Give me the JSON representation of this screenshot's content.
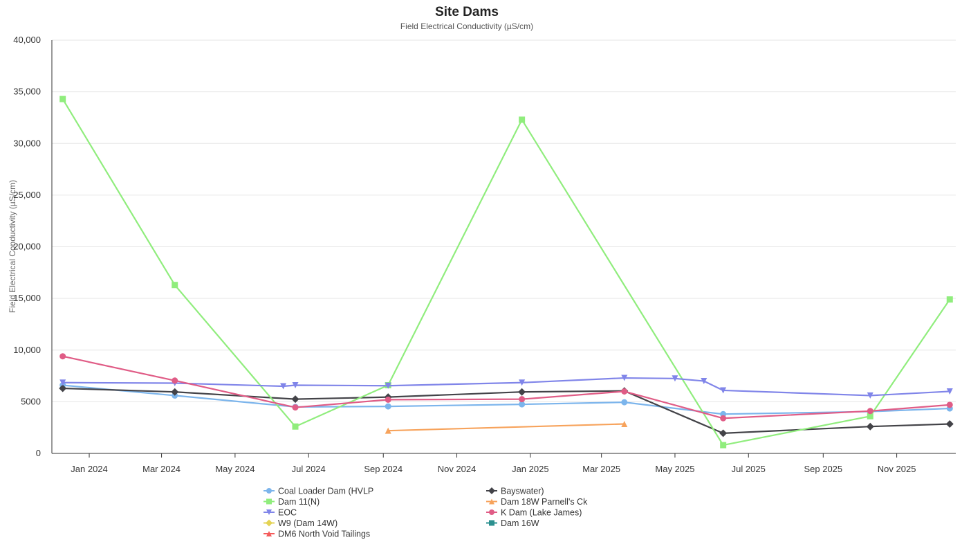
{
  "chart_data": {
    "type": "line",
    "title": "Site Dams",
    "subtitle": "Field Electrical Conductivity (µS/cm)",
    "ylabel": "Field Electrical Conductivity (µS/cm)",
    "xlabel": "",
    "ylim": [
      0,
      40000
    ],
    "xlim": [
      "2023-12-01",
      "2025-12-20"
    ],
    "y_ticks": [
      0,
      5000,
      10000,
      15000,
      20000,
      25000,
      30000,
      35000,
      40000
    ],
    "y_tick_labels": [
      "0",
      "5000",
      "10,000",
      "15,000",
      "20,000",
      "25,000",
      "30,000",
      "35,000",
      "40,000"
    ],
    "x_ticks": [
      "2024-01-01",
      "2024-03-01",
      "2024-05-01",
      "2024-07-01",
      "2024-09-01",
      "2024-11-01",
      "2025-01-01",
      "2025-03-01",
      "2025-05-01",
      "2025-07-01",
      "2025-09-01",
      "2025-11-01"
    ],
    "x_tick_labels": [
      "Jan 2024",
      "Mar 2024",
      "May 2024",
      "Jul 2024",
      "Sep 2024",
      "Nov 2024",
      "Jan 2025",
      "Mar 2025",
      "May 2025",
      "Jul 2025",
      "Sep 2025",
      "Nov 2025"
    ],
    "grid": true,
    "legend_position": "bottom",
    "series": [
      {
        "name": "Coal Loader Dam (HVLP",
        "color": "#7cb5ec",
        "marker": "circle",
        "points": [
          [
            "2023-12-10",
            6600
          ],
          [
            "2024-03-12",
            5600
          ],
          [
            "2024-06-20",
            4500
          ],
          [
            "2024-09-05",
            4550
          ],
          [
            "2024-12-25",
            4750
          ],
          [
            "2025-03-20",
            4950
          ],
          [
            "2025-06-10",
            3800
          ],
          [
            "2025-10-10",
            4050
          ],
          [
            "2025-12-15",
            4350
          ]
        ]
      },
      {
        "name": "Bayswater)",
        "color": "#434348",
        "marker": "diamond",
        "points": [
          [
            "2023-12-10",
            6300
          ],
          [
            "2024-03-12",
            5950
          ],
          [
            "2024-06-20",
            5250
          ],
          [
            "2024-09-05",
            5450
          ],
          [
            "2024-12-25",
            5950
          ],
          [
            "2025-03-20",
            6050
          ],
          [
            "2025-06-10",
            1950
          ],
          [
            "2025-10-10",
            2600
          ],
          [
            "2025-12-15",
            2850
          ]
        ]
      },
      {
        "name": "Dam 11(N)",
        "color": "#90ed7d",
        "marker": "square",
        "points": [
          [
            "2023-12-10",
            34300
          ],
          [
            "2024-03-12",
            16300
          ],
          [
            "2024-06-20",
            2600
          ],
          [
            "2024-09-05",
            6600
          ],
          [
            "2024-12-25",
            32300
          ],
          [
            "2025-06-10",
            800
          ],
          [
            "2025-10-10",
            3600
          ],
          [
            "2025-12-15",
            14900
          ]
        ]
      },
      {
        "name": "Dam 18W Parnell's Ck",
        "color": "#f7a35c",
        "marker": "triangle",
        "points": [
          [
            "2024-09-05",
            2200
          ],
          [
            "2025-03-20",
            2850
          ]
        ]
      },
      {
        "name": "EOC",
        "color": "#8085e9",
        "marker": "triangle-down",
        "points": [
          [
            "2023-12-10",
            6850
          ],
          [
            "2024-03-12",
            6800
          ],
          [
            "2024-06-10",
            6500
          ],
          [
            "2024-06-20",
            6600
          ],
          [
            "2024-09-05",
            6550
          ],
          [
            "2024-12-25",
            6850
          ],
          [
            "2025-03-20",
            7300
          ],
          [
            "2025-05-01",
            7250
          ],
          [
            "2025-05-25",
            7000
          ],
          [
            "2025-06-10",
            6100
          ],
          [
            "2025-10-10",
            5600
          ],
          [
            "2025-12-15",
            6000
          ]
        ]
      },
      {
        "name": "K Dam (Lake James)",
        "color": "#e05c86",
        "marker": "circle",
        "points": [
          [
            "2023-12-10",
            9400
          ],
          [
            "2024-03-12",
            7050
          ],
          [
            "2024-06-20",
            4450
          ],
          [
            "2024-09-05",
            5200
          ],
          [
            "2024-12-25",
            5250
          ],
          [
            "2025-03-20",
            6000
          ],
          [
            "2025-06-10",
            3400
          ],
          [
            "2025-10-10",
            4100
          ],
          [
            "2025-12-15",
            4700
          ]
        ]
      },
      {
        "name": "W9 (Dam 14W)",
        "color": "#e4d354",
        "marker": "diamond",
        "points": []
      },
      {
        "name": "Dam 16W",
        "color": "#2b908f",
        "marker": "square",
        "points": []
      },
      {
        "name": "DM6 North Void Tailings",
        "color": "#f45b5b",
        "marker": "triangle",
        "points": []
      }
    ],
    "legend_order": [
      [
        "Coal Loader Dam (HVLP",
        "Bayswater)"
      ],
      [
        "Dam 11(N)",
        "Dam 18W Parnell's Ck"
      ],
      [
        "EOC",
        "K Dam (Lake James)"
      ],
      [
        "W9 (Dam 14W)",
        "Dam 16W"
      ],
      [
        "DM6 North Void Tailings",
        null
      ]
    ]
  }
}
